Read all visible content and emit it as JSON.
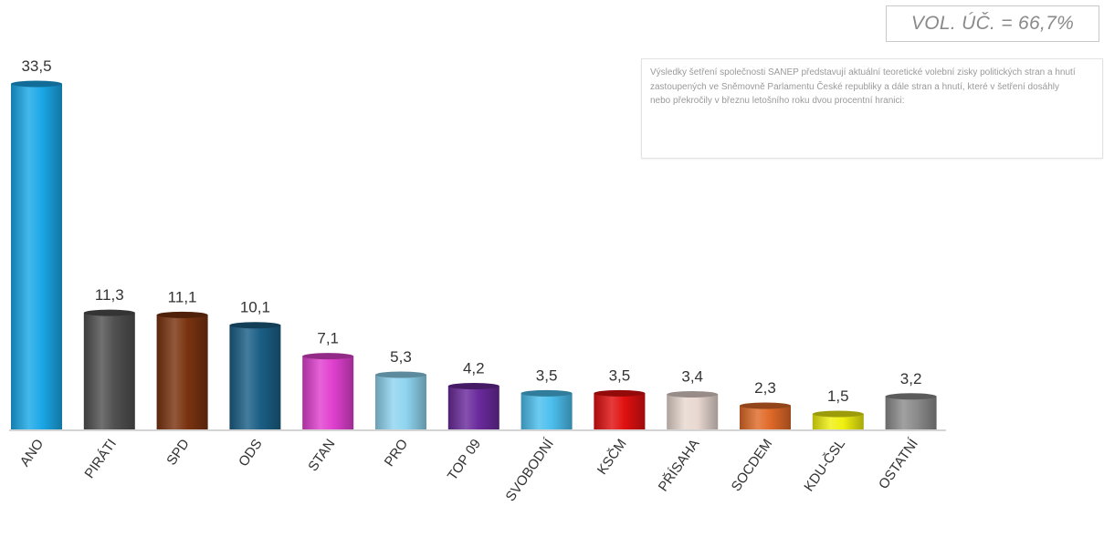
{
  "turnout": {
    "text": "VOL. ÚČ. = 66,7%"
  },
  "note": {
    "text": "Výsledky šetření společnosti SANEP představují aktuální teoretické volební zisky politických stran a hnutí zastoupených ve Sněmovně Parlamentu České republiky a dále stran a hnutí, které v šetření dosáhly nebo překročily v březnu letošního roku dvou procentní hranici:"
  },
  "chart_data": {
    "type": "bar",
    "title": "",
    "xlabel": "",
    "ylabel": "",
    "ylim": [
      0,
      35
    ],
    "grid": false,
    "categories": [
      "ANO",
      "PIRÁTI",
      "SPD",
      "ODS",
      "STAN",
      "PRO",
      "TOP 09",
      "SVOBODNÍ",
      "KSČM",
      "PŘÍSAHA",
      "SOCDEM",
      "KDU-ČSL",
      "OSTATNÍ"
    ],
    "values": [
      33.5,
      11.3,
      11.1,
      10.1,
      7.1,
      5.3,
      4.2,
      3.5,
      3.5,
      3.4,
      2.3,
      1.5,
      3.2
    ],
    "value_labels": [
      "33,5",
      "11,3",
      "11,1",
      "10,1",
      "7,1",
      "5,3",
      "4,2",
      "3,5",
      "3,5",
      "3,4",
      "2,3",
      "1,5",
      "3,2"
    ],
    "colors": [
      "#1aa8e8",
      "#505050",
      "#7a3310",
      "#1b5f86",
      "#e040d0",
      "#8fd4f0",
      "#6a2a9c",
      "#4cbfee",
      "#e01010",
      "#e8d8d0",
      "#e06a28",
      "#f0f010",
      "#8c8c8c"
    ]
  }
}
